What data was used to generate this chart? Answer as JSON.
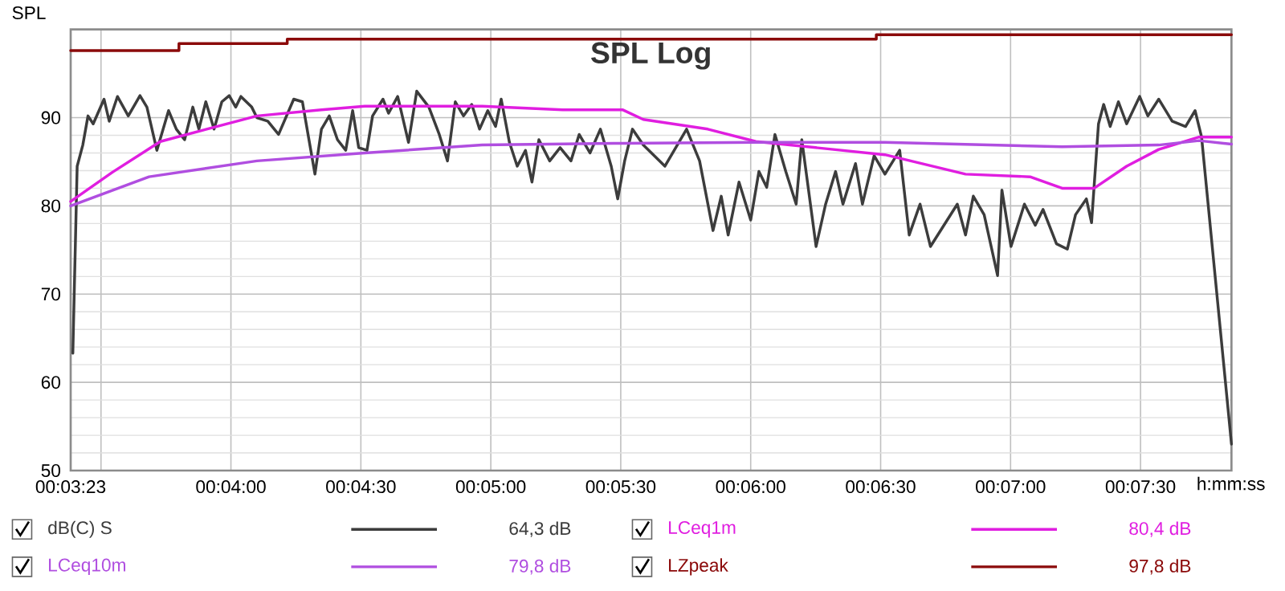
{
  "chart_data": {
    "type": "line",
    "title": "SPL Log",
    "ylabel": "SPL",
    "xlabel": "h:mm:ss",
    "xlim": [
      203,
      471
    ],
    "ylim": [
      50,
      100
    ],
    "xticks": [
      {
        "value": 203,
        "label": "00:03:23"
      },
      {
        "value": 210,
        "label": null
      },
      {
        "value": 240,
        "label": "00:04:00"
      },
      {
        "value": 270,
        "label": "00:04:30"
      },
      {
        "value": 300,
        "label": "00:05:00"
      },
      {
        "value": 330,
        "label": "00:05:30"
      },
      {
        "value": 360,
        "label": "00:06:00"
      },
      {
        "value": 390,
        "label": "00:06:30"
      },
      {
        "value": 420,
        "label": "00:07:00"
      },
      {
        "value": 450,
        "label": "00:07:30"
      }
    ],
    "yticks": [
      50,
      60,
      70,
      80,
      90
    ],
    "grid": true,
    "legend": "bottom",
    "annotations": [
      "64,3 dB",
      "80,4 dB",
      "79,8 dB",
      "97,8 dB"
    ],
    "series": [
      {
        "name": "dB(C) S",
        "color": "#3c3c3c",
        "x": [
          203.5,
          204.5,
          205.8,
          207,
          208.2,
          210.7,
          211.9,
          213.8,
          216.3,
          219,
          220.6,
          222.9,
          225.6,
          227.4,
          229.3,
          231.2,
          232.6,
          234.2,
          236.1,
          237.9,
          239.6,
          241.1,
          242.3,
          244.8,
          246,
          248.5,
          251,
          254.5,
          256.5,
          257.8,
          259.4,
          260.9,
          262.7,
          264.6,
          266.5,
          268.1,
          269.5,
          271.4,
          272.7,
          275.1,
          276.4,
          278.5,
          281,
          282.9,
          285.7,
          288.1,
          290,
          291.8,
          293.7,
          295.6,
          297.4,
          299.3,
          301.1,
          302.4,
          304.3,
          306.1,
          308,
          309.5,
          311.1,
          313.6,
          316,
          318.5,
          320.4,
          322.9,
          325.3,
          327.8,
          329.3,
          330.9,
          332.7,
          335.2,
          340.2,
          345.2,
          348.2,
          351.3,
          353.2,
          354.8,
          357.3,
          360,
          361.9,
          363.7,
          365.6,
          368.1,
          370.5,
          371.8,
          375.1,
          377.3,
          379.6,
          381.3,
          384.2,
          385.8,
          388.5,
          391,
          394.4,
          396.6,
          399.1,
          401.5,
          404.6,
          407.7,
          409.6,
          411.4,
          413.9,
          417,
          418,
          420.1,
          423.2,
          425.7,
          427.5,
          430.6,
          433.1,
          435,
          437.5,
          438.7,
          440.3,
          441.5,
          443,
          444.9,
          446.8,
          449.8,
          451.7,
          454.2,
          457.3,
          460.4,
          462.6,
          464.1,
          471
        ],
        "values": [
          63.3,
          84.5,
          86.9,
          90.2,
          89.3,
          92.1,
          89.6,
          92.4,
          90.2,
          92.5,
          91.2,
          86.3,
          90.8,
          88.7,
          87.5,
          91.2,
          88.7,
          91.8,
          88.7,
          91.8,
          92.5,
          91.2,
          92.4,
          91.2,
          90.0,
          89.6,
          88.1,
          92.1,
          91.8,
          88.1,
          83.6,
          88.7,
          90.2,
          87.5,
          86.3,
          90.8,
          86.6,
          86.3,
          90.2,
          92.1,
          90.5,
          92.4,
          87.2,
          93.0,
          91.2,
          88.1,
          85.1,
          91.8,
          90.2,
          91.5,
          88.7,
          90.8,
          89.0,
          92.1,
          87.2,
          84.5,
          86.3,
          82.7,
          87.5,
          85.1,
          86.6,
          85.1,
          88.1,
          86.0,
          88.7,
          84.5,
          80.8,
          85.1,
          88.7,
          86.9,
          84.5,
          88.7,
          85.1,
          77.2,
          81.1,
          76.7,
          82.7,
          78.4,
          83.9,
          82.1,
          88.1,
          83.9,
          80.2,
          87.5,
          75.4,
          80.2,
          83.9,
          80.2,
          84.8,
          80.2,
          85.7,
          83.6,
          86.3,
          76.7,
          80.2,
          75.4,
          77.8,
          80.2,
          76.7,
          81.1,
          79.0,
          72.1,
          81.8,
          75.4,
          80.2,
          77.8,
          79.6,
          75.7,
          75.1,
          79.0,
          80.8,
          78.1,
          89.3,
          91.5,
          89.0,
          91.8,
          89.3,
          92.4,
          90.2,
          92.1,
          89.6,
          89.0,
          90.8,
          87.8,
          53.0
        ]
      },
      {
        "name": "LCeq1m",
        "color": "#e01ee0",
        "x": [
          203,
          212.6,
          223.7,
          246,
          260.9,
          270.9,
          298,
          316.6,
          330.4,
          335.2,
          350.1,
          361.2,
          391,
          409.6,
          424.5,
          431.9,
          439.3,
          446.8,
          454.2,
          463.5,
          471
        ],
        "values": [
          80.5,
          83.8,
          87.3,
          90.2,
          90.9,
          91.3,
          91.3,
          90.9,
          90.9,
          89.8,
          88.7,
          87.3,
          85.8,
          83.6,
          83.3,
          82.0,
          82.0,
          84.5,
          86.4,
          87.8,
          87.8
        ]
      },
      {
        "name": "LCeq10m",
        "color": "#b04ee0",
        "x": [
          203,
          221.1,
          246,
          270.9,
          298,
          330.4,
          361.2,
          391,
          431.9,
          454.2,
          463.5,
          471
        ],
        "values": [
          80.0,
          83.3,
          85.1,
          86.0,
          86.9,
          87.1,
          87.2,
          87.2,
          86.7,
          86.9,
          87.4,
          87.0
        ]
      },
      {
        "name": "LZpeak",
        "color": "#8b0a0a",
        "type": "step",
        "x": [
          203,
          228,
          253,
          389,
          471
        ],
        "values": [
          97.6,
          98.4,
          98.9,
          99.4,
          99.4
        ]
      }
    ]
  }
}
